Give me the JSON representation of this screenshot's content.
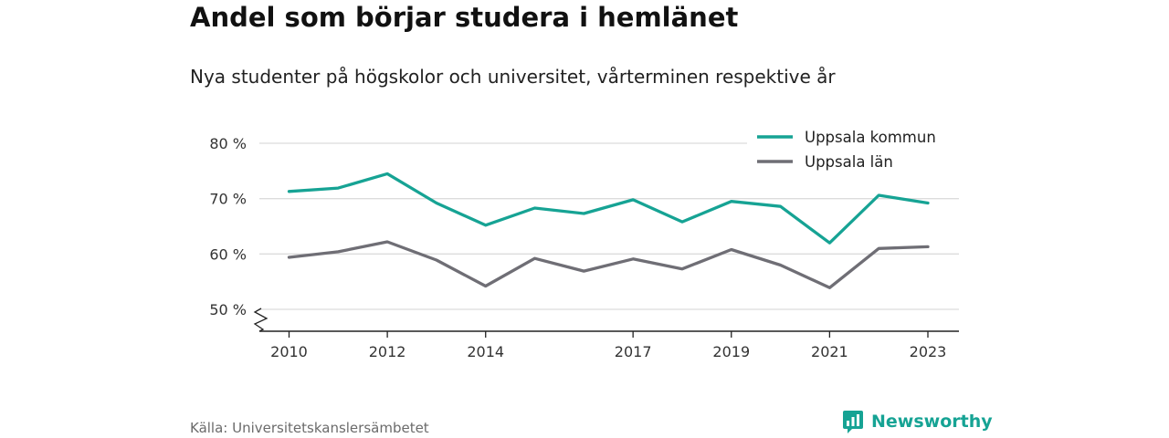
{
  "chart_data": {
    "type": "line",
    "title": "Andel som börjar studera i hemlänet",
    "subtitle": "Nya studenter på högskolor och universitet, vårterminen respektive år",
    "x": [
      2010,
      2011,
      2012,
      2013,
      2014,
      2015,
      2016,
      2017,
      2018,
      2019,
      2020,
      2021,
      2022,
      2023
    ],
    "x_tick_labels": [
      "2010",
      "2012",
      "2014",
      "2017",
      "2019",
      "2021",
      "2023"
    ],
    "y_ticks": [
      50,
      60,
      70,
      80
    ],
    "y_tick_labels": [
      "50 %",
      "60 %",
      "70 %",
      "80 %"
    ],
    "ylim": [
      46,
      81
    ],
    "grid": true,
    "legend_position": "top-right",
    "series": [
      {
        "name": "Uppsala kommun",
        "color": "#16a394",
        "values": [
          71.3,
          71.9,
          74.5,
          69.2,
          65.2,
          68.3,
          67.3,
          69.8,
          65.8,
          69.5,
          68.6,
          62.0,
          70.6,
          69.2
        ]
      },
      {
        "name": "Uppsala län",
        "color": "#6f6e75",
        "values": [
          59.4,
          60.4,
          62.2,
          58.9,
          54.2,
          59.2,
          56.9,
          59.1,
          57.3,
          60.8,
          58.0,
          53.9,
          61.0,
          61.3
        ]
      }
    ]
  },
  "source": "Källa: Universitetskanslersämbetet",
  "brand": {
    "name": "Newsworthy",
    "icon": "newsworthy-logo-icon",
    "color": "#16a394"
  }
}
